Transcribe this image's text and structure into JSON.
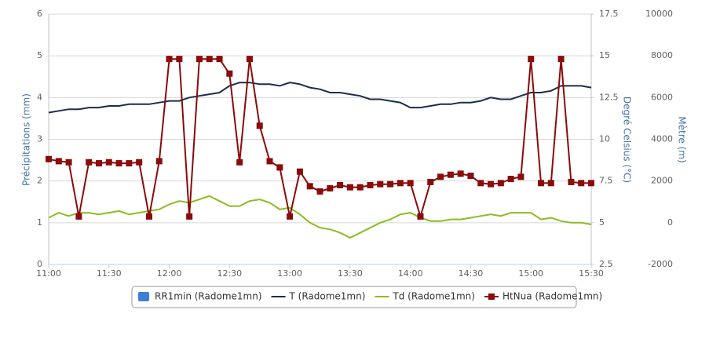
{
  "chart_data": {
    "type": "line",
    "categories": [
      "11:00",
      null,
      null,
      null,
      null,
      null,
      "11:30",
      null,
      null,
      null,
      null,
      null,
      "12:00",
      null,
      null,
      null,
      null,
      null,
      "12:30",
      null,
      null,
      null,
      null,
      null,
      "13:00",
      null,
      null,
      null,
      null,
      null,
      "13:30",
      null,
      null,
      null,
      null,
      null,
      "14:00",
      null,
      null,
      null,
      null,
      null,
      "14:30",
      null,
      null,
      null,
      null,
      null,
      "15:00",
      null,
      null,
      null,
      null,
      null,
      "15:30"
    ],
    "ylabel": "Précipitations (mm)",
    "ylim": [
      0,
      6
    ],
    "yticks": [
      0,
      1,
      2,
      3,
      4,
      5,
      6
    ],
    "y2label": "Degré Celsius (°C)",
    "y2lim": [
      2.5,
      17.5
    ],
    "y2ticks": [
      2.5,
      5,
      7.5,
      10,
      12.5,
      15,
      17.5
    ],
    "y3label": "Mètre (m)",
    "y3lim": [
      -2000,
      10000
    ],
    "y3ticks": [
      -2000,
      0,
      2000,
      4000,
      6000,
      8000,
      10000
    ],
    "grid": true,
    "series": [
      {
        "name": "RR1min (Radome1mn)",
        "type": "bar",
        "color": "#3d7fd6",
        "axis": "y",
        "values": [
          0,
          0,
          0,
          0,
          0,
          0,
          0,
          0,
          0,
          0,
          0,
          0,
          0,
          0,
          0,
          0,
          0,
          0,
          0,
          0,
          0,
          0,
          0,
          0,
          0,
          0,
          0,
          0,
          0,
          0,
          0,
          0,
          0,
          0,
          0,
          0,
          0,
          0,
          0,
          0,
          0,
          0,
          0,
          0,
          0,
          0,
          0,
          0,
          0,
          0,
          0,
          0,
          0,
          0,
          0
        ]
      },
      {
        "name": "T (Radome1mn)",
        "type": "line",
        "color": "#1c2d4c",
        "axis": "y2",
        "values": [
          11.6,
          11.7,
          11.8,
          11.8,
          11.9,
          11.9,
          12.0,
          12.0,
          12.1,
          12.1,
          12.1,
          12.2,
          12.3,
          12.3,
          12.5,
          12.6,
          12.7,
          12.8,
          13.2,
          13.4,
          13.4,
          13.3,
          13.3,
          13.2,
          13.4,
          13.3,
          13.1,
          13.0,
          12.8,
          12.8,
          12.7,
          12.6,
          12.4,
          12.4,
          12.3,
          12.2,
          11.9,
          11.9,
          12.0,
          12.1,
          12.1,
          12.2,
          12.2,
          12.3,
          12.5,
          12.4,
          12.4,
          12.6,
          12.8,
          12.8,
          12.9,
          13.2,
          13.2,
          13.2,
          13.1
        ]
      },
      {
        "name": "Td (Radome1mn)",
        "type": "line",
        "color": "#8bbc21",
        "axis": "y2",
        "values": [
          5.3,
          5.6,
          5.4,
          5.6,
          5.6,
          5.5,
          5.6,
          5.7,
          5.5,
          5.6,
          5.7,
          5.8,
          6.1,
          6.3,
          6.2,
          6.4,
          6.6,
          6.3,
          6.0,
          6.0,
          6.3,
          6.4,
          6.2,
          5.8,
          5.9,
          5.5,
          5.0,
          4.7,
          4.6,
          4.4,
          4.1,
          4.4,
          4.7,
          5.0,
          5.2,
          5.5,
          5.6,
          5.3,
          5.1,
          5.1,
          5.2,
          5.2,
          5.3,
          5.4,
          5.5,
          5.4,
          5.6,
          5.6,
          5.6,
          5.2,
          5.3,
          5.1,
          5.0,
          5.0,
          4.9
        ]
      },
      {
        "name": "HtNua (Radome1mn)",
        "type": "line",
        "marker": "square",
        "color": "#8b0a0a",
        "axis": "y3",
        "values": [
          3050,
          2950,
          2900,
          300,
          2900,
          2850,
          2900,
          2850,
          2850,
          2900,
          300,
          2950,
          7850,
          7850,
          300,
          7850,
          7850,
          7850,
          7150,
          2900,
          7850,
          4650,
          2950,
          2650,
          300,
          2450,
          1750,
          1500,
          1650,
          1800,
          1700,
          1700,
          1800,
          1850,
          1850,
          1900,
          1900,
          300,
          1950,
          2200,
          2300,
          2350,
          2250,
          1900,
          1850,
          1900,
          2100,
          2200,
          7850,
          1900,
          1900,
          7850,
          1950,
          1900,
          1900
        ]
      }
    ]
  }
}
